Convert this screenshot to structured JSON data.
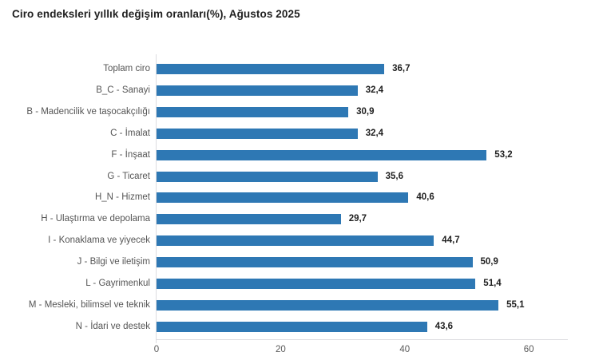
{
  "title": "Ciro endeksleri yıllık değişim oranları(%), Ağustos 2025",
  "colors": {
    "bar": "#2E78B4",
    "title_text": "#1f1f1f",
    "category_text": "#555555",
    "value_text": "#1f1f1f",
    "tick_text": "#595959",
    "axis_line": "#dcdce0",
    "background": "#ffffff"
  },
  "chart_data": {
    "type": "bar",
    "orientation": "horizontal",
    "title": "Ciro endeksleri yıllık değişim oranları(%), Ağustos 2025",
    "categories": [
      "Toplam ciro",
      "B_C - Sanayi",
      "B - Madencilik ve taşocakçılığı",
      "C - İmalat",
      "F - İnşaat",
      "G - Ticaret",
      "H_N - Hizmet",
      "H - Ulaştırma ve depolama",
      "I - Konaklama ve yiyecek",
      "J - Bilgi ve iletişim",
      "L - Gayrimenkul",
      "M - Mesleki, bilimsel ve teknik",
      "N - İdari ve destek"
    ],
    "values": [
      36.7,
      32.4,
      30.9,
      32.4,
      53.2,
      35.6,
      40.6,
      29.7,
      44.7,
      50.9,
      51.4,
      55.1,
      43.6
    ],
    "value_labels": [
      "36,7",
      "32,4",
      "30,9",
      "32,4",
      "53,2",
      "35,6",
      "40,6",
      "29,7",
      "44,7",
      "50,9",
      "51,4",
      "55,1",
      "43,6"
    ],
    "xlabel": "",
    "ylabel": "",
    "xlim": [
      0,
      65
    ],
    "x_ticks": [
      0,
      20,
      40,
      60
    ],
    "x_tick_labels": [
      "0",
      "20",
      "40",
      "60"
    ],
    "grid": false,
    "legend": false
  },
  "layout_note": ""
}
